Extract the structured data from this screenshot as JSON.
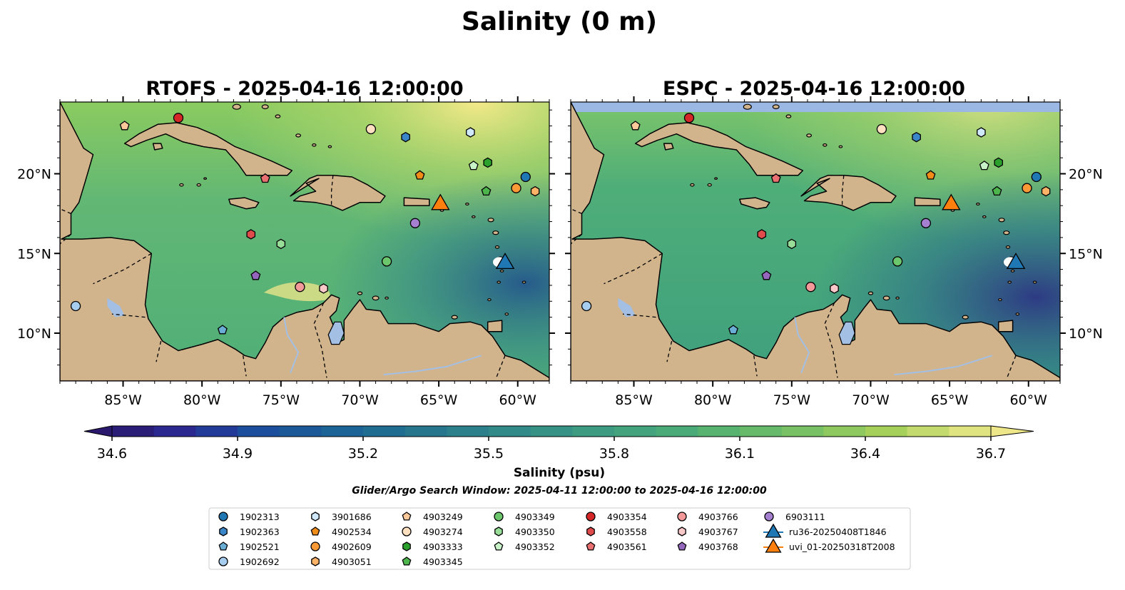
{
  "figure": {
    "title": "Salinity (0 m)"
  },
  "panels": [
    {
      "id": "rtofs",
      "title": "RTOFS - 2025-04-16 12:00:00"
    },
    {
      "id": "espc",
      "title": "ESPC - 2025-04-16 12:00:00"
    }
  ],
  "axes": {
    "lon_ticks": [
      "85°W",
      "80°W",
      "75°W",
      "70°W",
      "65°W",
      "60°W"
    ],
    "lat_ticks": [
      "20°N",
      "15°N",
      "10°N"
    ],
    "lon_range": [
      -89,
      -58
    ],
    "lat_range": [
      7,
      24.5
    ]
  },
  "colorbar": {
    "label": "Salinity (psu)",
    "ticks": [
      "34.6",
      "34.9",
      "35.2",
      "35.5",
      "35.8",
      "36.1",
      "36.4",
      "36.7"
    ],
    "range": [
      34.6,
      36.7
    ],
    "colormap": "haline",
    "extend": "both"
  },
  "search_window": "Glider/Argo Search Window: 2025-04-11 12:00:00 to 2025-04-16 12:00:00",
  "colors": {
    "land": "#d2b48c",
    "water_bodies": "#a3bfe3",
    "deep_pacific": "#2a1864",
    "espc_nodata": "#9ab8e3"
  },
  "legend": [
    {
      "label": "1902313",
      "shape": "circle",
      "color": "#1f77b4"
    },
    {
      "label": "1902363",
      "shape": "hexagon",
      "color": "#3a86c8"
    },
    {
      "label": "1902521",
      "shape": "pentagon",
      "color": "#6aaed6"
    },
    {
      "label": "1902692",
      "shape": "circle",
      "color": "#a6cdee"
    },
    {
      "label": "3901686",
      "shape": "hexagon",
      "color": "#cfe9fb"
    },
    {
      "label": "4902534",
      "shape": "pentagon",
      "color": "#f28c18"
    },
    {
      "label": "4902609",
      "shape": "circle",
      "color": "#fb9a36"
    },
    {
      "label": "4903051",
      "shape": "hexagon",
      "color": "#fdb367"
    },
    {
      "label": "4903249",
      "shape": "pentagon",
      "color": "#fdc99a"
    },
    {
      "label": "4903274",
      "shape": "circle",
      "color": "#fde0c0"
    },
    {
      "label": "4903333",
      "shape": "hexagon",
      "color": "#2ca02c"
    },
    {
      "label": "4903345",
      "shape": "pentagon",
      "color": "#4cb64c"
    },
    {
      "label": "4903349",
      "shape": "circle",
      "color": "#6cc66c"
    },
    {
      "label": "4903350",
      "shape": "hexagon",
      "color": "#98dd98"
    },
    {
      "label": "4903352",
      "shape": "pentagon",
      "color": "#c8f2c8"
    },
    {
      "label": "4903354",
      "shape": "circle",
      "color": "#d62728"
    },
    {
      "label": "4903558",
      "shape": "hexagon",
      "color": "#e04b4c"
    },
    {
      "label": "4903561",
      "shape": "pentagon",
      "color": "#ea6f70"
    },
    {
      "label": "4903766",
      "shape": "circle",
      "color": "#f4999a"
    },
    {
      "label": "4903767",
      "shape": "hexagon",
      "color": "#f9c8c9"
    },
    {
      "label": "4903768",
      "shape": "pentagon",
      "color": "#9467bd"
    },
    {
      "label": "6903111",
      "shape": "circle",
      "color": "#a57fd0"
    },
    {
      "label": "ru36-20250408T1846",
      "shape": "triangle",
      "color": "#1f77b4"
    },
    {
      "label": "uvi_01-20250318T2008",
      "shape": "triangle",
      "color": "#ff7f0e"
    }
  ],
  "floats": [
    {
      "id": "4903354",
      "lon": -81.5,
      "lat": 23.5
    },
    {
      "id": "4903249",
      "lon": -84.9,
      "lat": 23.0
    },
    {
      "id": "4903274",
      "lon": -69.3,
      "lat": 22.8
    },
    {
      "id": "1902363",
      "lon": -67.1,
      "lat": 22.3
    },
    {
      "id": "3901686",
      "lon": -63.0,
      "lat": 22.6
    },
    {
      "id": "4903333",
      "lon": -61.9,
      "lat": 20.7
    },
    {
      "id": "4903352",
      "lon": -62.8,
      "lat": 20.5
    },
    {
      "id": "4902534",
      "lon": -66.2,
      "lat": 19.9
    },
    {
      "id": "4903561",
      "lon": -76.0,
      "lat": 19.7
    },
    {
      "id": "1902313",
      "lon": -59.5,
      "lat": 19.8
    },
    {
      "id": "4902609",
      "lon": -60.1,
      "lat": 19.1
    },
    {
      "id": "4903051",
      "lon": -58.9,
      "lat": 18.9
    },
    {
      "id": "4903345",
      "lon": -62.0,
      "lat": 18.9
    },
    {
      "id": "6903111",
      "lon": -66.5,
      "lat": 16.9
    },
    {
      "id": "4903558",
      "lon": -76.9,
      "lat": 16.2
    },
    {
      "id": "4903350",
      "lon": -75.0,
      "lat": 15.6
    },
    {
      "id": "4903349",
      "lon": -68.3,
      "lat": 14.5
    },
    {
      "id": "4903768",
      "lon": -76.6,
      "lat": 13.6
    },
    {
      "id": "4903766",
      "lon": -73.8,
      "lat": 12.9
    },
    {
      "id": "4903767",
      "lon": -72.3,
      "lat": 12.8
    },
    {
      "id": "1902692",
      "lon": -88.0,
      "lat": 11.7
    },
    {
      "id": "1902521",
      "lon": -78.7,
      "lat": 10.2
    }
  ],
  "gliders": [
    {
      "id": "uvi_01-20250318T2008",
      "lon": -64.9,
      "lat": 18.2,
      "color": "#ff7f0e"
    },
    {
      "id": "ru36-20250408T1846",
      "lon": -60.8,
      "lat": 14.5,
      "color": "#1f77b4"
    }
  ]
}
